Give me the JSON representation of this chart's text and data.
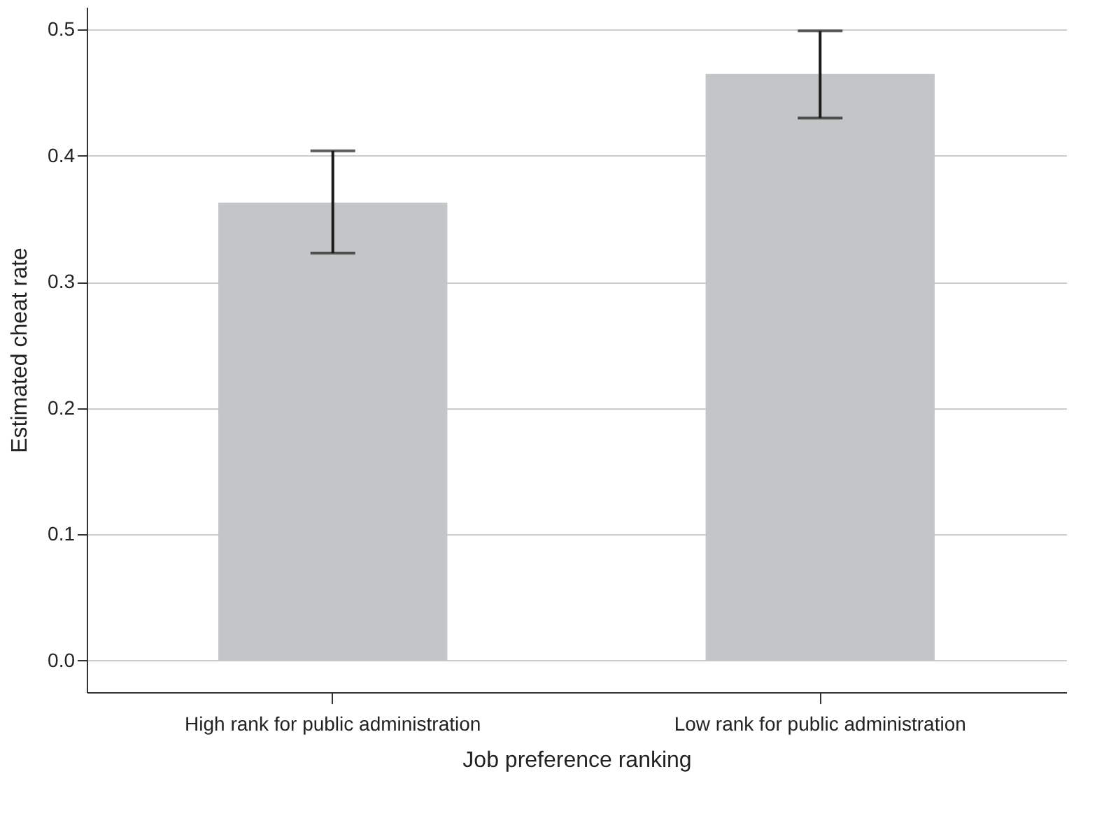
{
  "chart_data": {
    "type": "bar",
    "categories": [
      "High rank for public administration",
      "Low rank for public administration"
    ],
    "values": [
      0.363,
      0.465
    ],
    "errors": [
      [
        0.323,
        0.404
      ],
      [
        0.43,
        0.499
      ]
    ],
    "color": "#c4c5c7",
    "xlabel": "Job preference ranking",
    "ylabel": "Estimated cheat rate",
    "ylim": [
      -0.025,
      0.518
    ],
    "yticks": [
      {
        "value": 0,
        "label": "0.0"
      },
      0.1,
      0.2,
      0.3,
      0.4,
      0.5
    ],
    "grid": "y"
  }
}
